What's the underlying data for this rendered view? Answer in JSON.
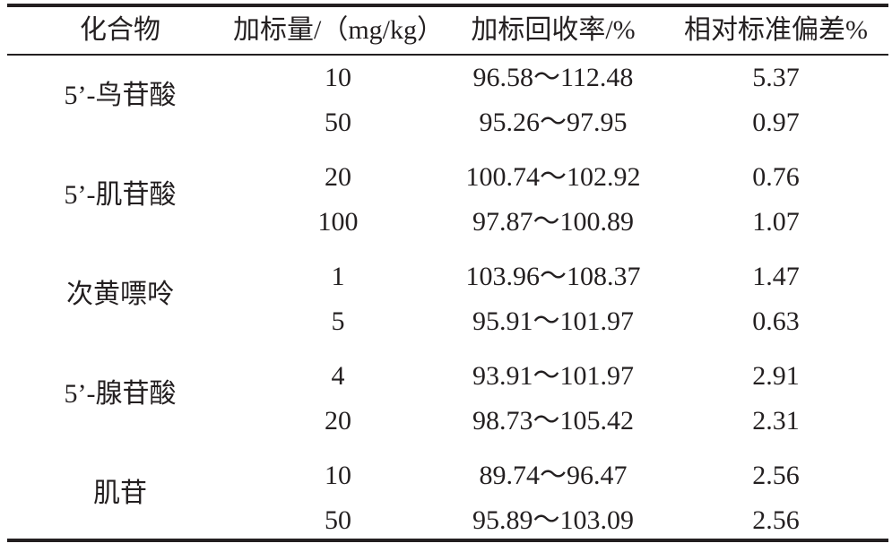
{
  "table": {
    "headers": [
      "化合物",
      "加标量/（mg/kg）",
      "加标回收率/%",
      "相对标准偏差%"
    ],
    "groups": [
      {
        "compound": "5’-鸟苷酸",
        "rows": [
          {
            "spike": "10",
            "recovery": "96.58～112.48",
            "rsd": "5.37"
          },
          {
            "spike": "50",
            "recovery": "95.26～97.95",
            "rsd": "0.97"
          }
        ]
      },
      {
        "compound": "5’-肌苷酸",
        "rows": [
          {
            "spike": "20",
            "recovery": "100.74～102.92",
            "rsd": "0.76"
          },
          {
            "spike": "100",
            "recovery": "97.87～100.89",
            "rsd": "1.07"
          }
        ]
      },
      {
        "compound": "次黄嘌呤",
        "rows": [
          {
            "spike": "1",
            "recovery": "103.96～108.37",
            "rsd": "1.47"
          },
          {
            "spike": "5",
            "recovery": "95.91～101.97",
            "rsd": "0.63"
          }
        ]
      },
      {
        "compound": "5’-腺苷酸",
        "rows": [
          {
            "spike": "4",
            "recovery": "93.91～101.97",
            "rsd": "2.91"
          },
          {
            "spike": "20",
            "recovery": "98.73～105.42",
            "rsd": "2.31"
          }
        ]
      },
      {
        "compound": "肌苷",
        "rows": [
          {
            "spike": "10",
            "recovery": "89.74～96.47",
            "rsd": "2.56"
          },
          {
            "spike": "50",
            "recovery": "95.89～103.09",
            "rsd": "2.56"
          }
        ]
      }
    ]
  }
}
